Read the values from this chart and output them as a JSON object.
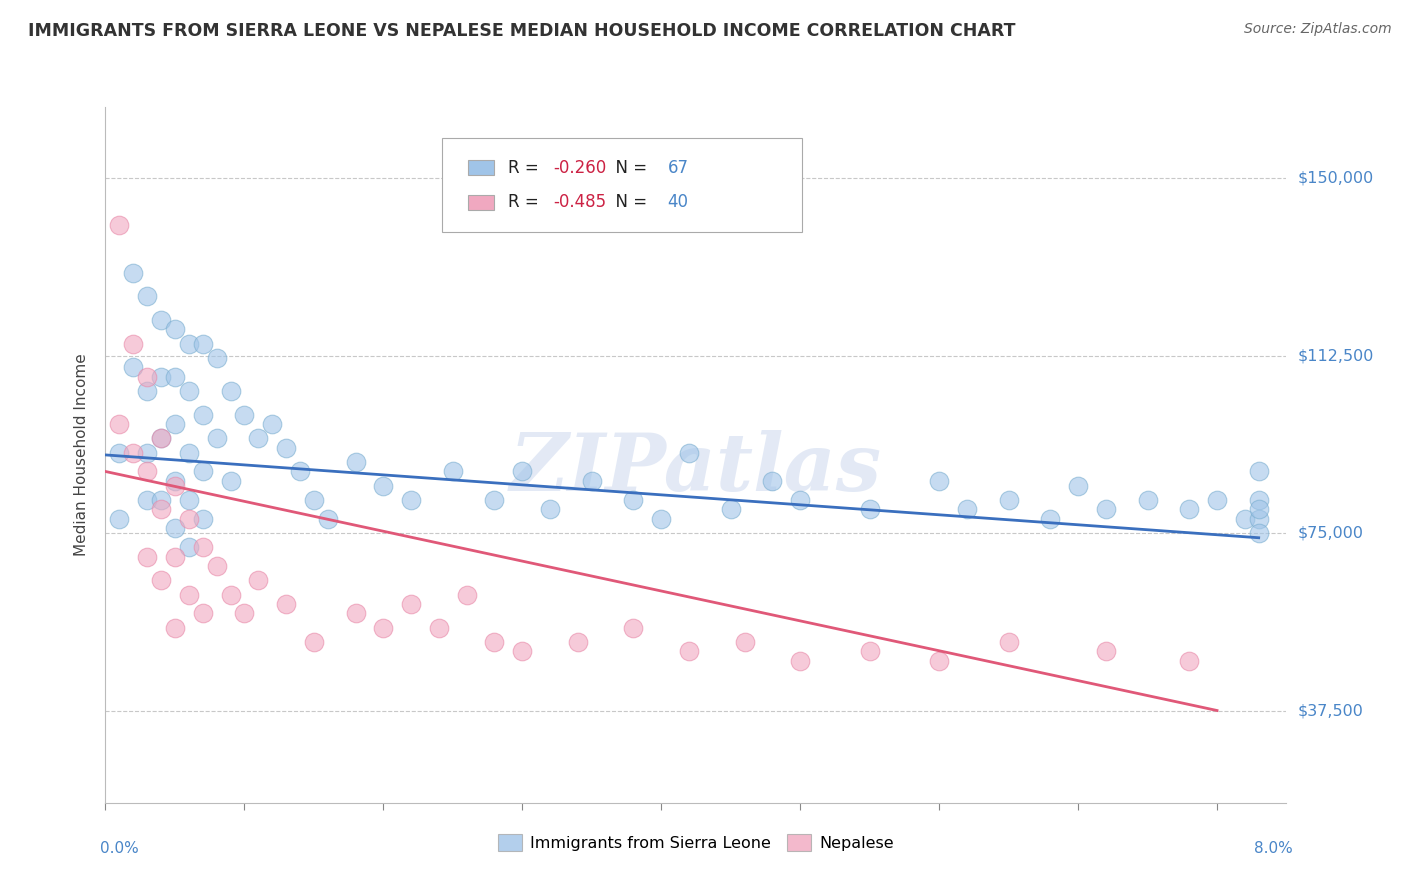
{
  "title": "IMMIGRANTS FROM SIERRA LEONE VS NEPALESE MEDIAN HOUSEHOLD INCOME CORRELATION CHART",
  "source": "Source: ZipAtlas.com",
  "ylabel": "Median Household Income",
  "watermark": "ZIPatlas",
  "yticks": [
    37500,
    75000,
    112500,
    150000
  ],
  "ytick_labels": [
    "$37,500",
    "$75,000",
    "$112,500",
    "$150,000"
  ],
  "xlim": [
    0.0,
    0.085
  ],
  "ylim": [
    18000,
    165000
  ],
  "xtick_vals": [
    0.0,
    0.01,
    0.02,
    0.03,
    0.04,
    0.05,
    0.06,
    0.07,
    0.08
  ],
  "blue_color": "#a0c4e8",
  "pink_color": "#f0a8c0",
  "blue_edge_color": "#7aaed0",
  "pink_edge_color": "#e888a8",
  "blue_line_color": "#3a6fbe",
  "pink_line_color": "#e05878",
  "blue_R": "-0.260",
  "blue_N": "67",
  "pink_R": "-0.485",
  "pink_N": "40",
  "blue_scatter_x": [
    0.001,
    0.001,
    0.002,
    0.002,
    0.003,
    0.003,
    0.003,
    0.003,
    0.004,
    0.004,
    0.004,
    0.004,
    0.005,
    0.005,
    0.005,
    0.005,
    0.005,
    0.006,
    0.006,
    0.006,
    0.006,
    0.006,
    0.007,
    0.007,
    0.007,
    0.007,
    0.008,
    0.008,
    0.009,
    0.009,
    0.01,
    0.011,
    0.012,
    0.013,
    0.014,
    0.015,
    0.016,
    0.018,
    0.02,
    0.022,
    0.025,
    0.028,
    0.03,
    0.032,
    0.035,
    0.038,
    0.04,
    0.042,
    0.045,
    0.048,
    0.05,
    0.055,
    0.06,
    0.062,
    0.065,
    0.068,
    0.07,
    0.072,
    0.075,
    0.078,
    0.08,
    0.082,
    0.083,
    0.083,
    0.083,
    0.083,
    0.083
  ],
  "blue_scatter_y": [
    92000,
    78000,
    130000,
    110000,
    125000,
    105000,
    92000,
    82000,
    120000,
    108000,
    95000,
    82000,
    118000,
    108000,
    98000,
    86000,
    76000,
    115000,
    105000,
    92000,
    82000,
    72000,
    115000,
    100000,
    88000,
    78000,
    112000,
    95000,
    105000,
    86000,
    100000,
    95000,
    98000,
    93000,
    88000,
    82000,
    78000,
    90000,
    85000,
    82000,
    88000,
    82000,
    88000,
    80000,
    86000,
    82000,
    78000,
    92000,
    80000,
    86000,
    82000,
    80000,
    86000,
    80000,
    82000,
    78000,
    85000,
    80000,
    82000,
    80000,
    82000,
    78000,
    88000,
    82000,
    78000,
    80000,
    75000
  ],
  "pink_scatter_x": [
    0.001,
    0.001,
    0.002,
    0.002,
    0.003,
    0.003,
    0.003,
    0.004,
    0.004,
    0.004,
    0.005,
    0.005,
    0.005,
    0.006,
    0.006,
    0.007,
    0.007,
    0.008,
    0.009,
    0.01,
    0.011,
    0.013,
    0.015,
    0.018,
    0.02,
    0.022,
    0.024,
    0.026,
    0.028,
    0.03,
    0.034,
    0.038,
    0.042,
    0.046,
    0.05,
    0.055,
    0.06,
    0.065,
    0.072,
    0.078
  ],
  "pink_scatter_y": [
    140000,
    98000,
    115000,
    92000,
    108000,
    88000,
    70000,
    95000,
    80000,
    65000,
    85000,
    70000,
    55000,
    78000,
    62000,
    72000,
    58000,
    68000,
    62000,
    58000,
    65000,
    60000,
    52000,
    58000,
    55000,
    60000,
    55000,
    62000,
    52000,
    50000,
    52000,
    55000,
    50000,
    52000,
    48000,
    50000,
    48000,
    52000,
    50000,
    48000
  ],
  "blue_trend_x": [
    0.0,
    0.083
  ],
  "blue_trend_y": [
    91500,
    74000
  ],
  "pink_trend_x": [
    0.0,
    0.08
  ],
  "pink_trend_y": [
    88000,
    37500
  ]
}
